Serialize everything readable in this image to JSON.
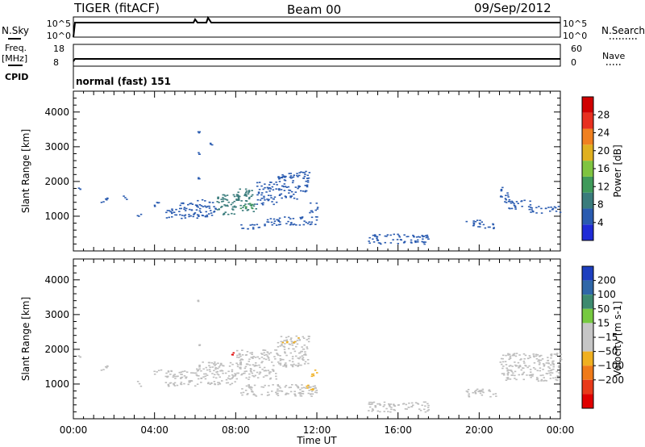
{
  "header": {
    "left": "TIGER (fitACF)",
    "center": "Beam 00",
    "right": "09/Sep/2012"
  },
  "strip_panels": {
    "nsky_label": "N.Sky",
    "nsky_ticks": [
      "10^5",
      "10^0"
    ],
    "nsearch_label": "N.Search",
    "nsearch_ticks": [
      "10^5",
      "10^0"
    ],
    "freq_label_1": "Freq.",
    "freq_label_2": "[MHz]",
    "freq_ticks": [
      "18",
      "8"
    ],
    "nave_label": "Nave",
    "nave_ticks": [
      "60",
      "0"
    ],
    "cpid_label": "CPID",
    "cpid_text": "normal (fast) 151"
  },
  "colors": {
    "power_scale": [
      "#1f2bd6",
      "#2a5bb0",
      "#3a7c7c",
      "#3f9a5a",
      "#7fc440",
      "#e0b020",
      "#f08020",
      "#e83020",
      "#d00000"
    ],
    "velocity_scale": [
      "#1d3fbf",
      "#2f67a8",
      "#3d8a6f",
      "#76c940",
      "#c6c6c6",
      "#c6c6c6",
      "#f0b020",
      "#ef7a18",
      "#e83a1a",
      "#e00000"
    ],
    "ground_scatter": "#bdbdbd"
  },
  "chart_data": [
    {
      "type": "heatmap",
      "name": "power",
      "xlabel": "",
      "ylabel": "Slant Range [km]",
      "x_ticks": [
        "00:00",
        "04:00",
        "08:00",
        "12:00",
        "16:00",
        "20:00",
        "00:00"
      ],
      "xlim_hours": [
        0,
        24
      ],
      "ylim": [
        0,
        4600
      ],
      "y_ticks": [
        1000,
        2000,
        3000,
        4000
      ],
      "colorbar": {
        "label": "Power [dB]",
        "ticks": [
          4,
          8,
          12,
          16,
          20,
          24,
          28
        ],
        "range": [
          0,
          32
        ]
      },
      "patches": [
        {
          "x0": 0.2,
          "x1": 0.4,
          "y0": 1750,
          "y1": 1850,
          "level": 1
        },
        {
          "x0": 1.3,
          "x1": 1.8,
          "y0": 1400,
          "y1": 1550,
          "level": 1
        },
        {
          "x0": 2.4,
          "x1": 2.6,
          "y0": 1500,
          "y1": 1600,
          "level": 1
        },
        {
          "x0": 3.1,
          "x1": 3.3,
          "y0": 950,
          "y1": 1100,
          "level": 1
        },
        {
          "x0": 3.9,
          "x1": 4.3,
          "y0": 1300,
          "y1": 1450,
          "level": 1
        },
        {
          "x0": 4.5,
          "x1": 5.2,
          "y0": 950,
          "y1": 1250,
          "level": 1
        },
        {
          "x0": 5.2,
          "x1": 6.2,
          "y0": 950,
          "y1": 1400,
          "level": 1
        },
        {
          "x0": 6.0,
          "x1": 7.0,
          "y0": 1000,
          "y1": 1500,
          "level": 1
        },
        {
          "x0": 7.0,
          "x1": 8.0,
          "y0": 1050,
          "y1": 1650,
          "level": 2
        },
        {
          "x0": 8.0,
          "x1": 9.0,
          "y0": 1150,
          "y1": 1800,
          "level": 2
        },
        {
          "x0": 8.2,
          "x1": 8.8,
          "y0": 1200,
          "y1": 1400,
          "level": 3
        },
        {
          "x0": 9.0,
          "x1": 10.0,
          "y0": 1350,
          "y1": 2000,
          "level": 1
        },
        {
          "x0": 10.0,
          "x1": 11.0,
          "y0": 1500,
          "y1": 2250,
          "level": 1
        },
        {
          "x0": 11.0,
          "x1": 11.6,
          "y0": 1700,
          "y1": 2400,
          "level": 1
        },
        {
          "x0": 6.1,
          "x1": 6.2,
          "y0": 3350,
          "y1": 3450,
          "level": 1
        },
        {
          "x0": 6.7,
          "x1": 6.8,
          "y0": 3050,
          "y1": 3150,
          "level": 1
        },
        {
          "x0": 6.1,
          "x1": 6.2,
          "y0": 2750,
          "y1": 2850,
          "level": 1
        },
        {
          "x0": 6.1,
          "x1": 6.2,
          "y0": 2050,
          "y1": 2150,
          "level": 1
        },
        {
          "x0": 8.2,
          "x1": 9.5,
          "y0": 650,
          "y1": 800,
          "level": 1
        },
        {
          "x0": 9.5,
          "x1": 12.0,
          "y0": 750,
          "y1": 1000,
          "level": 1
        },
        {
          "x0": 11.6,
          "x1": 12.0,
          "y0": 1100,
          "y1": 1400,
          "level": 1
        },
        {
          "x0": 14.5,
          "x1": 17.5,
          "y0": 200,
          "y1": 500,
          "level": 1
        },
        {
          "x0": 19.2,
          "x1": 20.2,
          "y0": 700,
          "y1": 900,
          "level": 1
        },
        {
          "x0": 20.2,
          "x1": 20.8,
          "y0": 650,
          "y1": 800,
          "level": 1
        },
        {
          "x0": 21.0,
          "x1": 21.4,
          "y0": 1400,
          "y1": 1900,
          "level": 1
        },
        {
          "x0": 21.4,
          "x1": 22.5,
          "y0": 1200,
          "y1": 1500,
          "level": 1
        },
        {
          "x0": 22.5,
          "x1": 24.0,
          "y0": 1100,
          "y1": 1300,
          "level": 1
        }
      ]
    },
    {
      "type": "heatmap",
      "name": "velocity",
      "xlabel": "Time UT",
      "ylabel": "Slant Range [km]",
      "x_ticks": [
        "00:00",
        "04:00",
        "08:00",
        "12:00",
        "16:00",
        "20:00",
        "00:00"
      ],
      "xlim_hours": [
        0,
        24
      ],
      "ylim": [
        0,
        4600
      ],
      "y_ticks": [
        1000,
        2000,
        3000,
        4000
      ],
      "colorbar": {
        "label": "Velocity [m s-1]",
        "ticks": [
          200,
          100,
          50,
          15,
          -15,
          -50,
          -100,
          -200
        ]
      },
      "patches": [
        {
          "x0": 0.2,
          "x1": 0.4,
          "y0": 1750,
          "y1": 1850,
          "level": "gs"
        },
        {
          "x0": 1.3,
          "x1": 1.8,
          "y0": 1400,
          "y1": 1550,
          "level": "gs"
        },
        {
          "x0": 3.1,
          "x1": 3.3,
          "y0": 950,
          "y1": 1100,
          "level": "gs"
        },
        {
          "x0": 3.9,
          "x1": 4.3,
          "y0": 1300,
          "y1": 1450,
          "level": "gs"
        },
        {
          "x0": 4.5,
          "x1": 6.2,
          "y0": 950,
          "y1": 1400,
          "level": "gs"
        },
        {
          "x0": 6.0,
          "x1": 8.0,
          "y0": 1000,
          "y1": 1650,
          "level": "gs"
        },
        {
          "x0": 8.0,
          "x1": 10.0,
          "y0": 1150,
          "y1": 2000,
          "level": "gs"
        },
        {
          "x0": 10.0,
          "x1": 11.6,
          "y0": 1500,
          "y1": 2400,
          "level": "gs"
        },
        {
          "x0": 6.1,
          "x1": 6.2,
          "y0": 3350,
          "y1": 3450,
          "level": "gs"
        },
        {
          "x0": 6.1,
          "x1": 6.2,
          "y0": 2050,
          "y1": 2150,
          "level": "gs"
        },
        {
          "x0": 7.7,
          "x1": 7.85,
          "y0": 1850,
          "y1": 1950,
          "level": -200
        },
        {
          "x0": 10.2,
          "x1": 10.5,
          "y0": 2150,
          "y1": 2300,
          "level": -50
        },
        {
          "x0": 10.8,
          "x1": 11.1,
          "y0": 2200,
          "y1": 2350,
          "level": -50
        },
        {
          "x0": 8.2,
          "x1": 12.0,
          "y0": 650,
          "y1": 1000,
          "level": "gs"
        },
        {
          "x0": 11.4,
          "x1": 11.9,
          "y0": 850,
          "y1": 1000,
          "level": -50
        },
        {
          "x0": 11.7,
          "x1": 12.0,
          "y0": 1200,
          "y1": 1450,
          "level": -50
        },
        {
          "x0": 14.5,
          "x1": 17.5,
          "y0": 200,
          "y1": 500,
          "level": "gs"
        },
        {
          "x0": 19.2,
          "x1": 20.8,
          "y0": 650,
          "y1": 900,
          "level": "gs"
        },
        {
          "x0": 21.0,
          "x1": 24.0,
          "y0": 1100,
          "y1": 1900,
          "level": "gs"
        }
      ]
    }
  ]
}
